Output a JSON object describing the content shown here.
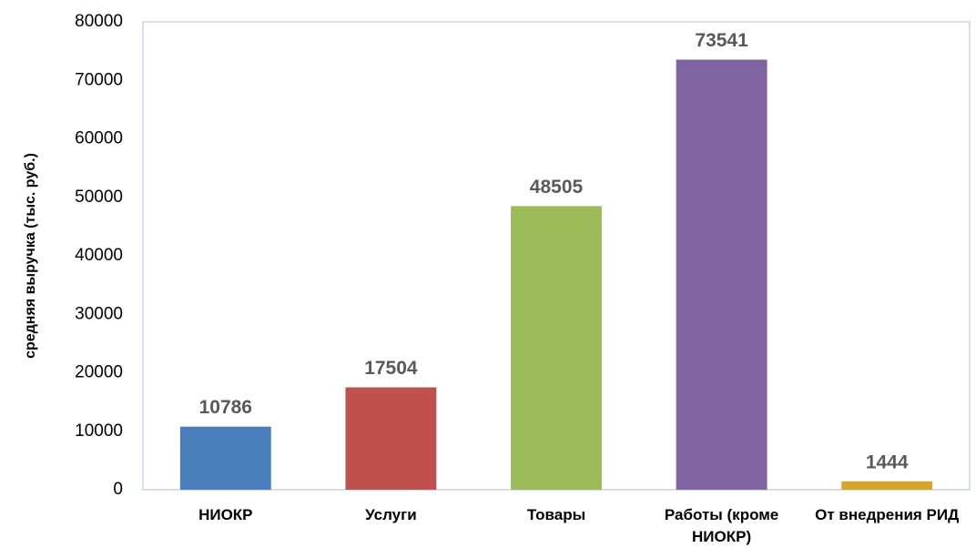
{
  "chart_data": {
    "type": "bar",
    "y_label": "средняя выручка (тыс. руб.)",
    "categories": [
      "НИОКР",
      "Услуги",
      "Товары",
      "Работы (кроме НИОКР)",
      "От внедрения РИД"
    ],
    "values": [
      10786,
      17504,
      48505,
      73541,
      1444
    ],
    "colors": [
      "#4a7ebb",
      "#c0504d",
      "#9bbb59",
      "#8064a2",
      "#d4a72c"
    ],
    "ylim": [
      0,
      80000
    ],
    "yticks": [
      0,
      10000,
      20000,
      30000,
      40000,
      50000,
      60000,
      70000,
      80000
    ],
    "grid": false
  }
}
